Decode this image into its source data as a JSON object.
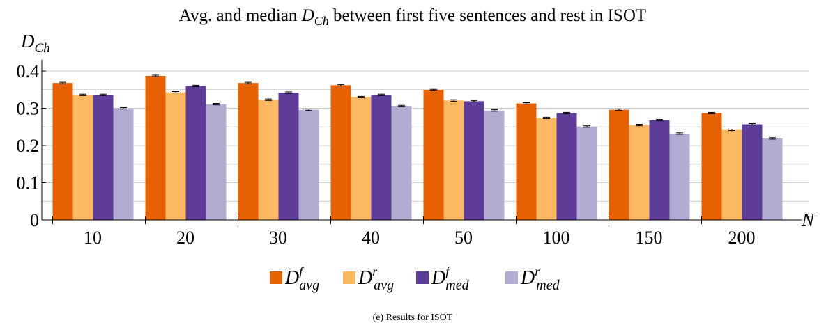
{
  "chart_data": {
    "type": "bar",
    "title": [
      "Avg. and median ",
      "D",
      "Ch",
      " between first five sentences and rest in ISOT"
    ],
    "ylabel": [
      "D",
      "Ch"
    ],
    "xlabel": "N",
    "categories": [
      "10",
      "20",
      "30",
      "40",
      "50",
      "100",
      "150",
      "200"
    ],
    "series": [
      {
        "name": [
          "D",
          "f",
          "avg"
        ],
        "color": "#e66101",
        "values": [
          0.368,
          0.387,
          0.368,
          0.362,
          0.349,
          0.313,
          0.296,
          0.287
        ],
        "errors": [
          0.002,
          0.002,
          0.002,
          0.002,
          0.002,
          0.002,
          0.002,
          0.002
        ]
      },
      {
        "name": [
          "D",
          "r",
          "avg"
        ],
        "color": "#fdb863",
        "values": [
          0.336,
          0.343,
          0.323,
          0.33,
          0.321,
          0.274,
          0.255,
          0.242
        ],
        "errors": [
          0.002,
          0.002,
          0.002,
          0.002,
          0.002,
          0.002,
          0.002,
          0.002
        ]
      },
      {
        "name": [
          "D",
          "f",
          "med"
        ],
        "color": "#5e3c99",
        "values": [
          0.336,
          0.36,
          0.342,
          0.336,
          0.319,
          0.287,
          0.268,
          0.257
        ],
        "errors": [
          0.002,
          0.002,
          0.002,
          0.002,
          0.002,
          0.002,
          0.002,
          0.002
        ]
      },
      {
        "name": [
          "D",
          "r",
          "med"
        ],
        "color": "#b2abd2",
        "values": [
          0.3,
          0.311,
          0.296,
          0.306,
          0.294,
          0.251,
          0.232,
          0.219
        ],
        "errors": [
          0.002,
          0.002,
          0.002,
          0.002,
          0.002,
          0.002,
          0.002,
          0.002
        ]
      }
    ],
    "ylim": [
      0,
      0.43
    ],
    "yticks": [
      0,
      0.1,
      0.2,
      0.3,
      0.4
    ],
    "minor_yticks": [
      0.05,
      0.15,
      0.25,
      0.35
    ],
    "grid": true,
    "legend": "bottom",
    "caption": "(e) Results for ISOT"
  }
}
